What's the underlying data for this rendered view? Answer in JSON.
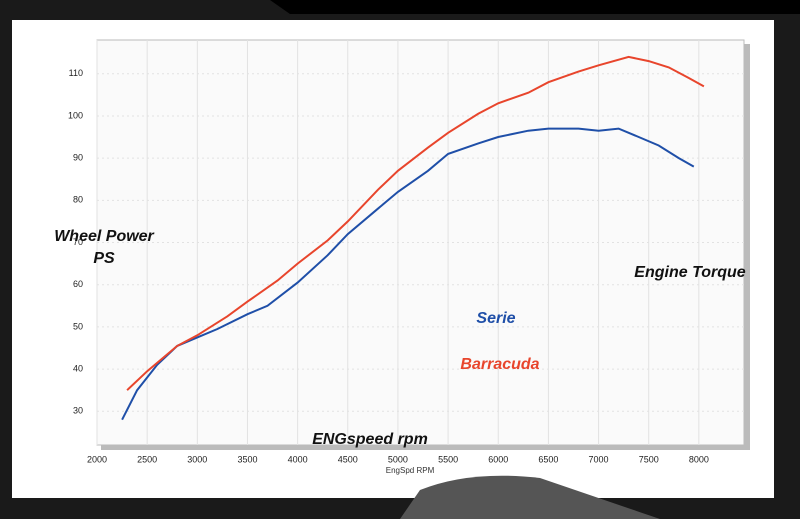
{
  "chart_data": {
    "type": "line",
    "ylabel": [
      "Wheel Power",
      "PS"
    ],
    "xlabel": "EngSpd  RPM",
    "annotations": [
      "ENGspeed rpm",
      "Engine Torque"
    ],
    "xlim": [
      2000,
      8450
    ],
    "ylim": [
      22,
      118
    ],
    "xticks": [
      2000,
      2500,
      3000,
      3500,
      4000,
      4500,
      5000,
      5500,
      6000,
      6500,
      7000,
      7500,
      8000
    ],
    "yticks": [
      30,
      40,
      50,
      60,
      70,
      80,
      90,
      100,
      110
    ],
    "grid": true,
    "series": [
      {
        "name": "Serie",
        "color": "#1f4fa8",
        "x": [
          2250,
          2400,
          2600,
          2800,
          3000,
          3200,
          3500,
          3700,
          4000,
          4300,
          4500,
          4800,
          5000,
          5300,
          5500,
          5800,
          6000,
          6300,
          6500,
          6800,
          7000,
          7200,
          7400,
          7600,
          7800,
          7950
        ],
        "values": [
          28,
          35,
          41,
          45.5,
          47.5,
          49.5,
          53,
          55,
          60.5,
          67,
          72,
          78,
          82,
          87,
          91,
          93.5,
          95,
          96.5,
          97,
          97,
          96.5,
          97,
          95,
          93,
          90,
          88
        ]
      },
      {
        "name": "Barracuda",
        "color": "#e8452c",
        "x": [
          2300,
          2500,
          2800,
          3000,
          3300,
          3500,
          3800,
          4000,
          4300,
          4500,
          4800,
          5000,
          5300,
          5500,
          5800,
          6000,
          6300,
          6500,
          6800,
          7000,
          7300,
          7500,
          7700,
          7900,
          8050
        ],
        "values": [
          35,
          39.5,
          45.5,
          48,
          52.5,
          56,
          61,
          65,
          70.5,
          75,
          82.5,
          87,
          92.5,
          96,
          100.5,
          103,
          105.5,
          108,
          110.5,
          112,
          114,
          113,
          111.5,
          109,
          107
        ]
      }
    ]
  }
}
